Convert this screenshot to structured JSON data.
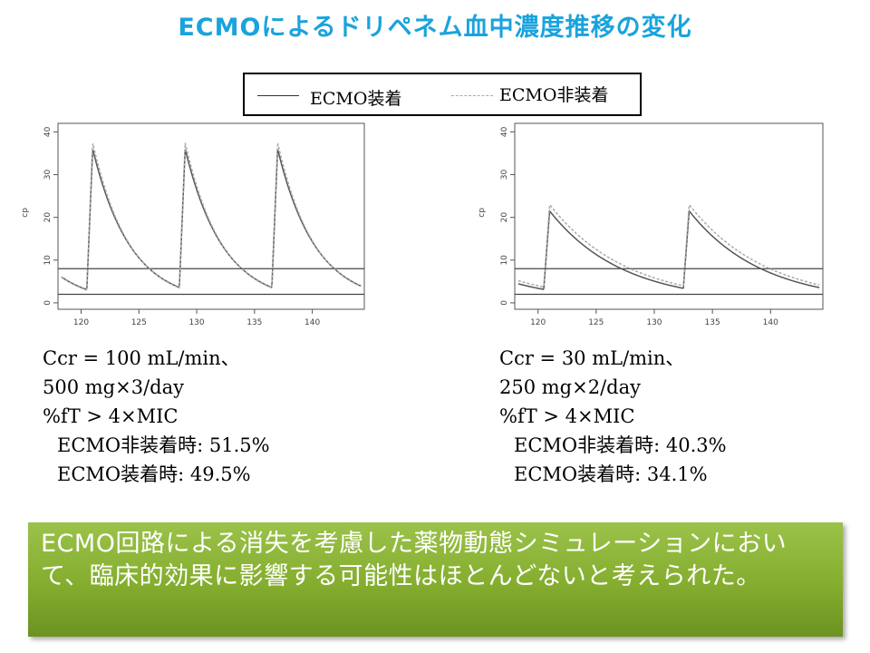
{
  "title": "ECMOによるドリペネム血中濃度推移の変化",
  "legend": {
    "solid_label": "ECMO装着",
    "dashed_label": "ECMO非装着"
  },
  "chart_data": [
    {
      "type": "line",
      "xlabel": "",
      "ylabel": "cp",
      "xlim": [
        118,
        144.5
      ],
      "ylim": [
        -1.5,
        42
      ],
      "x_ticks": [
        "120",
        "125",
        "130",
        "135",
        "140"
      ],
      "y_ticks": [
        "0",
        "10",
        "20",
        "30",
        "40"
      ],
      "hlines": [
        8,
        2
      ],
      "dose_interval_h": 8,
      "dose_times": [
        120.5,
        128.5,
        136.5
      ],
      "series": [
        {
          "name": "ECMO装着",
          "style": "solid",
          "color": "#555555",
          "trough": 3.6,
          "peak": 36
        },
        {
          "name": "ECMO非装着",
          "style": "dashed",
          "color": "#aaaaaa",
          "trough": 3.5,
          "peak": 37.5
        }
      ]
    },
    {
      "type": "line",
      "xlabel": "",
      "ylabel": "cp",
      "xlim": [
        118,
        144.5
      ],
      "ylim": [
        -1.5,
        42
      ],
      "x_ticks": [
        "120",
        "125",
        "130",
        "135",
        "140"
      ],
      "y_ticks": [
        "0",
        "10",
        "20",
        "30",
        "40"
      ],
      "hlines": [
        8,
        2
      ],
      "dose_interval_h": 12,
      "dose_times": [
        120.5,
        132.5
      ],
      "series": [
        {
          "name": "ECMO装着",
          "style": "solid",
          "color": "#555555",
          "trough": 3.4,
          "peak": 21.5
        },
        {
          "name": "ECMO非装着",
          "style": "dashed",
          "color": "#aaaaaa",
          "trough": 4.0,
          "peak": 23
        }
      ]
    }
  ],
  "left_info": {
    "line1": "Ccr = 100 mL/min、",
    "line2": "500 mg×3/day",
    "line3": "%fT > 4×MIC",
    "line4": "ECMO非装着時: 51.5%",
    "line5": "ECMO装着時: 49.5%"
  },
  "right_info": {
    "line1": "Ccr = 30 mL/min、",
    "line2": "250 mg×2/day",
    "line3": "%fT > 4×MIC",
    "line4": "ECMO非装着時: 40.3%",
    "line5": "ECMO装着時: 34.1%"
  },
  "conclusion": "ECMO回路による消失を考慮した薬物動態シミュレーションにおいて、臨床的効果に影響する可能性はほとんどないと考えられた。"
}
